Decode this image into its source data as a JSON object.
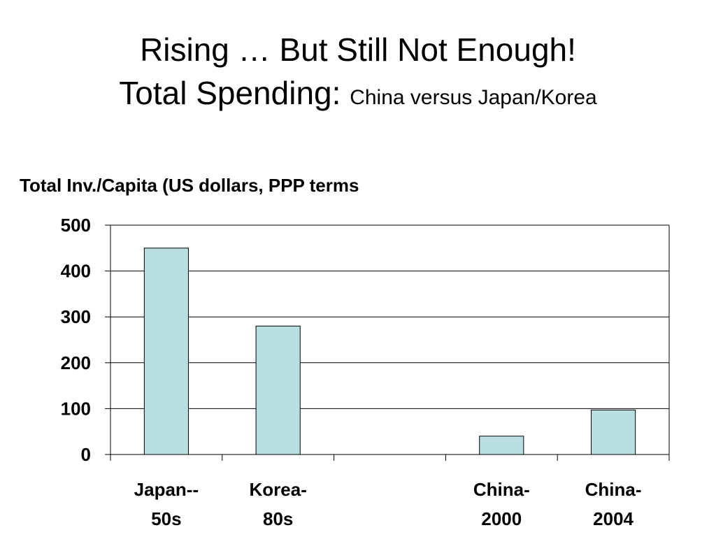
{
  "slide": {
    "title_line1": "Rising … But Still Not Enough!",
    "title_line2_main": "Total Spending:",
    "title_line2_sub": "China versus Japan/Korea"
  },
  "chart_data": {
    "type": "bar",
    "title": "Total Inv./Capita (US dollars, PPP terms",
    "categories": [
      [
        "Japan--",
        "50s"
      ],
      [
        "Korea-",
        "80s"
      ],
      [
        "",
        ""
      ],
      [
        "China-",
        "2000"
      ],
      [
        "China-",
        "2004"
      ]
    ],
    "values": [
      450,
      280,
      null,
      40,
      97
    ],
    "yticks": [
      "0",
      "100",
      "200",
      "300",
      "400",
      "500"
    ],
    "ylim": [
      0,
      500
    ],
    "grid": true,
    "bar_color": "#b9dfe2",
    "grid_color": "#000000"
  }
}
